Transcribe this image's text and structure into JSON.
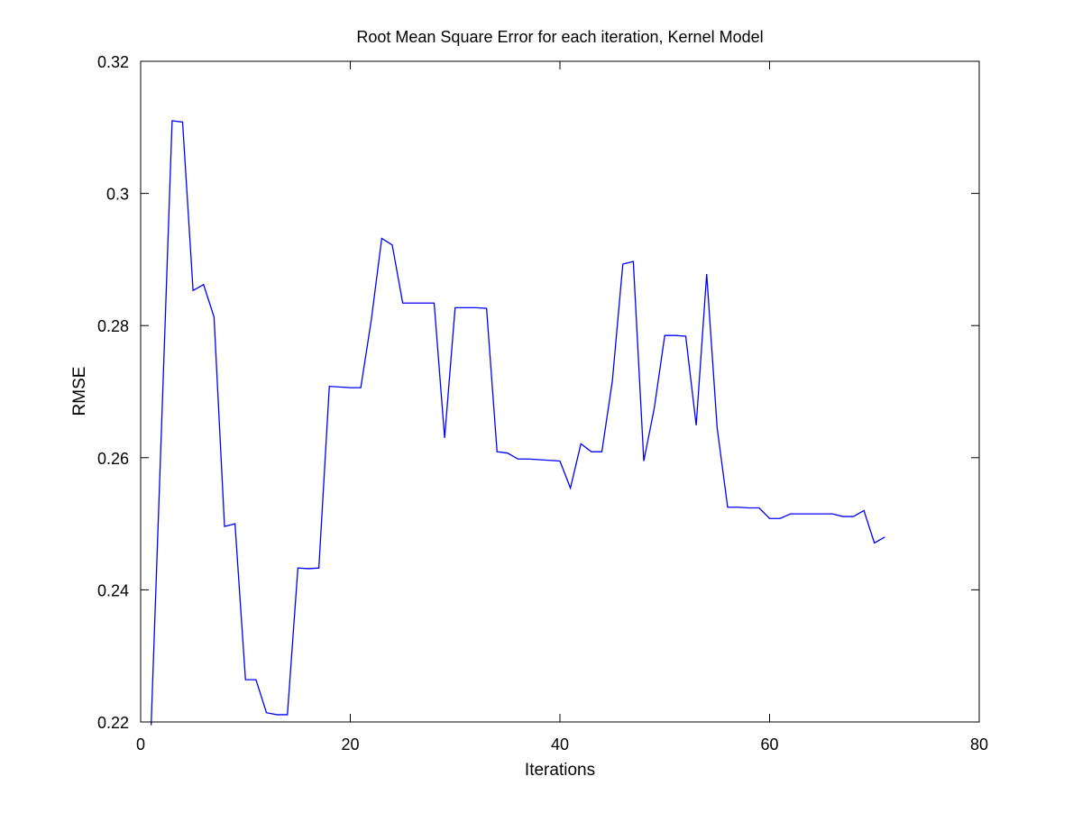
{
  "chart_data": {
    "type": "line",
    "title": "Root Mean Square Error for each iteration, Kernel Model",
    "xlabel": "Iterations",
    "ylabel": "RMSE",
    "xlim": [
      0,
      80
    ],
    "ylim": [
      0.22,
      0.32
    ],
    "xticks": [
      0,
      20,
      40,
      60,
      80
    ],
    "yticks": [
      0.22,
      0.24,
      0.26,
      0.28,
      0.3,
      0.32
    ],
    "xtick_labels": [
      "0",
      "20",
      "40",
      "60",
      "80"
    ],
    "ytick_labels": [
      "0.22",
      "0.24",
      "0.26",
      "0.28",
      "0.3",
      "0.32"
    ],
    "grid": false,
    "line_color": "#0000ff",
    "series": [
      {
        "x": [
          1,
          2,
          3,
          4,
          5,
          6,
          7,
          8,
          9,
          10,
          11,
          12,
          13,
          14,
          15,
          16,
          17,
          18,
          19,
          20,
          21,
          22,
          23,
          24,
          25,
          26,
          27,
          28,
          29,
          30,
          31,
          32,
          33,
          34,
          35,
          36,
          37,
          38,
          39,
          40,
          41,
          42,
          43,
          44,
          45,
          46,
          47,
          48,
          49,
          50,
          51,
          52,
          53,
          54,
          55,
          56,
          57,
          58,
          59,
          60,
          61,
          62,
          63,
          64,
          65,
          66,
          67,
          68,
          69,
          70,
          71
        ],
        "values": [
          0.2195,
          0.265,
          0.311,
          0.3108,
          0.2853,
          0.2862,
          0.2813,
          0.2496,
          0.25,
          0.2264,
          0.2264,
          0.2214,
          0.2211,
          0.2211,
          0.2433,
          0.2432,
          0.2433,
          0.2708,
          0.2707,
          0.2706,
          0.2706,
          0.2808,
          0.2932,
          0.2922,
          0.2834,
          0.2834,
          0.2834,
          0.2834,
          0.263,
          0.2827,
          0.2827,
          0.2827,
          0.2826,
          0.2609,
          0.2607,
          0.2598,
          0.2598,
          0.2597,
          0.2596,
          0.2595,
          0.2554,
          0.2621,
          0.2609,
          0.2609,
          0.2716,
          0.2893,
          0.2897,
          0.2595,
          0.2675,
          0.2785,
          0.2785,
          0.2784,
          0.2649,
          0.2878,
          0.2645,
          0.2525,
          0.2525,
          0.2524,
          0.2524,
          0.2508,
          0.2508,
          0.2515,
          0.2515,
          0.2515,
          0.2515,
          0.2515,
          0.2511,
          0.2511,
          0.252,
          0.2471,
          0.248
        ]
      }
    ]
  }
}
